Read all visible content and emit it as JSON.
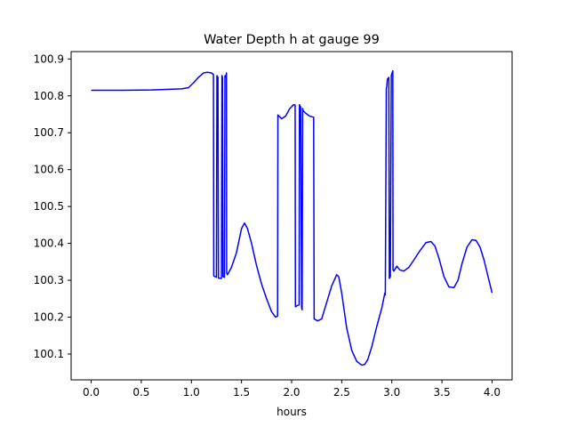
{
  "chart_data": {
    "type": "line",
    "title": "Water Depth h at gauge 99",
    "xlabel": "hours",
    "ylabel": "",
    "xlim": [
      -0.2,
      4.2
    ],
    "ylim": [
      100.03,
      100.92
    ],
    "xticks": [
      0.0,
      0.5,
      1.0,
      1.5,
      2.0,
      2.5,
      3.0,
      3.5,
      4.0
    ],
    "xtick_labels": [
      "0.0",
      "0.5",
      "1.0",
      "1.5",
      "2.0",
      "2.5",
      "3.0",
      "3.5",
      "4.0"
    ],
    "yticks": [
      100.1,
      100.2,
      100.3,
      100.4,
      100.5,
      100.6,
      100.7,
      100.8,
      100.9
    ],
    "ytick_labels": [
      "100.1",
      "100.2",
      "100.3",
      "100.4",
      "100.5",
      "100.6",
      "100.7",
      "100.8",
      "100.9"
    ],
    "grid": false,
    "series": [
      {
        "color": "#0000ff",
        "x": [
          0.0,
          0.3,
          0.6,
          0.9,
          0.97,
          1.02,
          1.07,
          1.12,
          1.16,
          1.2,
          1.22,
          1.223,
          1.25,
          1.255,
          1.265,
          1.27,
          1.3,
          1.305,
          1.31,
          1.315,
          1.33,
          1.335,
          1.345,
          1.35,
          1.352,
          1.36,
          1.4,
          1.45,
          1.5,
          1.53,
          1.56,
          1.6,
          1.65,
          1.7,
          1.75,
          1.8,
          1.84,
          1.86,
          1.863,
          1.9,
          1.94,
          1.98,
          2.02,
          2.035,
          2.038,
          2.06,
          2.075,
          2.078,
          2.08,
          2.09,
          2.1,
          2.105,
          2.11,
          2.115,
          2.14,
          2.18,
          2.22,
          2.225,
          2.26,
          2.3,
          2.35,
          2.4,
          2.45,
          2.47,
          2.5,
          2.55,
          2.6,
          2.65,
          2.7,
          2.73,
          2.76,
          2.8,
          2.85,
          2.9,
          2.93,
          2.935,
          2.945,
          2.95,
          2.955,
          2.97,
          2.975,
          2.985,
          2.995,
          3.0,
          3.01,
          3.012,
          3.02,
          3.05,
          3.08,
          3.12,
          3.17,
          3.22,
          3.28,
          3.34,
          3.39,
          3.43,
          3.47,
          3.52,
          3.57,
          3.62,
          3.66,
          3.7,
          3.75,
          3.8,
          3.84,
          3.88,
          3.92,
          3.96,
          4.0
        ],
        "y": [
          100.815,
          100.815,
          100.816,
          100.819,
          100.822,
          100.835,
          100.85,
          100.862,
          100.864,
          100.862,
          100.858,
          100.312,
          100.308,
          100.855,
          100.85,
          100.306,
          100.305,
          100.855,
          100.85,
          100.31,
          100.308,
          100.855,
          100.85,
          100.862,
          100.32,
          100.315,
          100.335,
          100.375,
          100.44,
          100.455,
          100.44,
          100.4,
          100.34,
          100.29,
          100.25,
          100.215,
          100.2,
          100.203,
          100.748,
          100.738,
          100.745,
          100.765,
          100.776,
          100.775,
          100.228,
          100.232,
          100.233,
          100.776,
          100.775,
          100.77,
          100.225,
          100.22,
          100.766,
          100.76,
          100.753,
          100.745,
          100.742,
          100.195,
          100.19,
          100.195,
          100.24,
          100.285,
          100.315,
          100.31,
          100.265,
          100.17,
          100.11,
          100.08,
          100.07,
          100.072,
          100.085,
          100.12,
          100.175,
          100.225,
          100.265,
          100.26,
          100.82,
          100.825,
          100.845,
          100.85,
          100.305,
          100.31,
          100.855,
          100.86,
          100.868,
          100.328,
          100.325,
          100.338,
          100.328,
          100.325,
          100.335,
          100.355,
          100.38,
          100.402,
          100.405,
          100.393,
          100.36,
          100.31,
          100.282,
          100.28,
          100.3,
          100.345,
          100.39,
          100.41,
          100.408,
          100.39,
          100.355,
          100.31,
          100.266
        ]
      }
    ]
  }
}
